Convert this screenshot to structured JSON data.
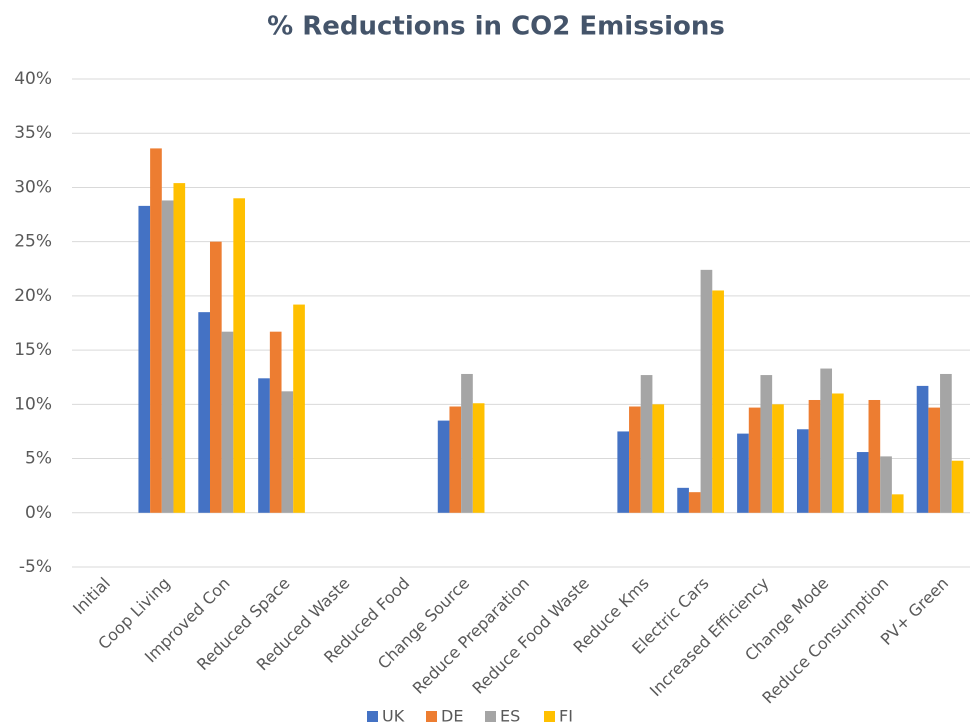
{
  "chart_data": {
    "type": "bar",
    "title": "% Reductions in CO2 Emissions",
    "categories": [
      "Initial",
      "Coop Living",
      "Improved Con",
      "Reduced Space",
      "Reduced Waste",
      "Reduced Food",
      "Change Source",
      "Reduce Preparation",
      "Reduce Food Waste",
      "Reduce Kms",
      "Electric Cars",
      "Increased Efficiency",
      "Change Mode",
      "Reduce Consumption",
      "PV+ Green"
    ],
    "series": [
      {
        "name": "UK",
        "color": "#4472c4",
        "values": [
          0,
          28.3,
          18.5,
          12.4,
          0,
          0,
          8.5,
          0,
          0,
          7.5,
          2.3,
          7.3,
          7.7,
          5.6,
          11.7
        ]
      },
      {
        "name": "DE",
        "color": "#ed7d31",
        "values": [
          0,
          33.6,
          25,
          16.7,
          0,
          0,
          9.8,
          0,
          0,
          9.8,
          1.9,
          9.7,
          10.4,
          10.4,
          9.7
        ]
      },
      {
        "name": "ES",
        "color": "#a5a5a5",
        "values": [
          0,
          28.8,
          16.7,
          11.2,
          0,
          0,
          12.8,
          0,
          0,
          12.7,
          22.4,
          12.7,
          13.3,
          5.2,
          12.8
        ]
      },
      {
        "name": "FI",
        "color": "#ffc000",
        "values": [
          0,
          30.4,
          29,
          19.2,
          0,
          0,
          10.1,
          0,
          0,
          10,
          20.5,
          10,
          11,
          1.7,
          4.8
        ]
      }
    ],
    "ylim": [
      -5,
      40
    ],
    "yticks": [
      {
        "value": -5,
        "label": "-5%"
      },
      {
        "value": 0,
        "label": "0%"
      },
      {
        "value": 5,
        "label": "5%"
      },
      {
        "value": 10,
        "label": "10%"
      },
      {
        "value": 15,
        "label": "15%"
      },
      {
        "value": 20,
        "label": "20%"
      },
      {
        "value": 25,
        "label": "25%"
      },
      {
        "value": 30,
        "label": "30%"
      },
      {
        "value": 35,
        "label": "35%"
      },
      {
        "value": 40,
        "label": "40%"
      }
    ],
    "grid": true,
    "legend": "bottom"
  }
}
